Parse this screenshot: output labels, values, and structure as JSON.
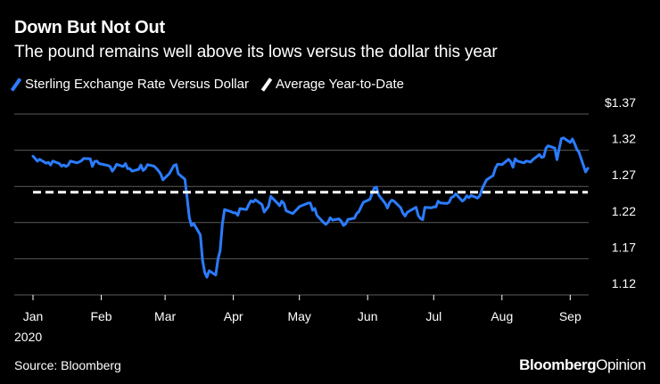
{
  "header": {
    "title": "Down But Not Out",
    "subtitle": "The pound remains well above its lows versus the dollar this year"
  },
  "legend": {
    "items": [
      {
        "label": "Sterling Exchange Rate Versus Dollar",
        "color": "#2b7cff"
      },
      {
        "label": "Average Year-to-Date",
        "color": "#ffffff"
      }
    ]
  },
  "footer": {
    "source": "Source: Bloomberg",
    "brand_bold": "Bloomberg",
    "brand_light": "Opinion"
  },
  "chart_data": {
    "type": "line",
    "title": "Down But Not Out",
    "subtitle": "The pound remains well above its lows versus the dollar this year",
    "xlabel": "",
    "ylabel": "",
    "x_unit": "day of year 2020",
    "xlim": [
      1,
      255
    ],
    "ylim": [
      1.12,
      1.37
    ],
    "y_ticks": [
      {
        "value": 1.37,
        "label": "$1.37"
      },
      {
        "value": 1.32,
        "label": "1.32"
      },
      {
        "value": 1.27,
        "label": "1.27"
      },
      {
        "value": 1.22,
        "label": "1.22"
      },
      {
        "value": 1.17,
        "label": "1.17"
      },
      {
        "value": 1.12,
        "label": "1.12"
      }
    ],
    "x_ticks": [
      {
        "value": 1,
        "label": "Jan"
      },
      {
        "value": 32,
        "label": "Feb"
      },
      {
        "value": 61,
        "label": "Mar"
      },
      {
        "value": 92,
        "label": "Apr"
      },
      {
        "value": 122,
        "label": "May"
      },
      {
        "value": 153,
        "label": "Jun"
      },
      {
        "value": 183,
        "label": "Jul"
      },
      {
        "value": 214,
        "label": "Aug"
      },
      {
        "value": 245,
        "label": "Sep"
      }
    ],
    "year_label": "2020",
    "grid": true,
    "series": [
      {
        "name": "Sterling Exchange Rate Versus Dollar",
        "color": "#2b7cff",
        "x": [
          1,
          3,
          4,
          7,
          8,
          9,
          10,
          13,
          14,
          15,
          16,
          17,
          18,
          21,
          22,
          23,
          24,
          27,
          28,
          29,
          30,
          31,
          35,
          36,
          37,
          38,
          39,
          42,
          43,
          44,
          45,
          46,
          49,
          50,
          51,
          52,
          53,
          56,
          57,
          58,
          59,
          60,
          63,
          64,
          65,
          66,
          67,
          70,
          71,
          72,
          73,
          74,
          77,
          78,
          79,
          80,
          81,
          84,
          85,
          86,
          87,
          88,
          91,
          92,
          93,
          94,
          95,
          98,
          99,
          100,
          101,
          102,
          105,
          106,
          107,
          108,
          109,
          112,
          113,
          114,
          115,
          116,
          119,
          120,
          121,
          122,
          123,
          126,
          127,
          128,
          129,
          130,
          133,
          134,
          135,
          136,
          137,
          140,
          141,
          142,
          143,
          144,
          147,
          148,
          149,
          150,
          151,
          154,
          155,
          156,
          157,
          158,
          161,
          162,
          163,
          164,
          165,
          168,
          169,
          170,
          171,
          172,
          175,
          176,
          177,
          178,
          179,
          182,
          183,
          184,
          185,
          186,
          189,
          190,
          191,
          192,
          193,
          196,
          197,
          198,
          199,
          200,
          203,
          204,
          205,
          206,
          207,
          210,
          211,
          212,
          213,
          214,
          217,
          218,
          219,
          220,
          221,
          224,
          225,
          226,
          227,
          228,
          231,
          232,
          233,
          234,
          235,
          238,
          239,
          240,
          241,
          242,
          245,
          246,
          247,
          248,
          249,
          252,
          253
        ],
        "values": [
          1.3117,
          1.3048,
          1.3075,
          1.302,
          1.3033,
          1.2995,
          1.305,
          1.3015,
          1.298,
          1.2995,
          1.2975,
          1.2995,
          1.305,
          1.3025,
          1.3038,
          1.3055,
          1.3085,
          1.308,
          1.2977,
          1.3045,
          1.305,
          1.3015,
          1.299,
          1.2975,
          1.291,
          1.295,
          1.3005,
          1.2975,
          1.3015,
          1.2945,
          1.2945,
          1.291,
          1.2937,
          1.2995,
          1.292,
          1.2945,
          1.3001,
          1.298,
          1.295,
          1.2915,
          1.287,
          1.279,
          1.2879,
          1.2935,
          1.2988,
          1.3002,
          1.2875,
          1.2799,
          1.254,
          1.2268,
          1.2158,
          1.2185,
          1.203,
          1.168,
          1.1513,
          1.1445,
          1.1534,
          1.1475,
          1.1695,
          1.181,
          1.2175,
          1.238,
          1.235,
          1.2334,
          1.2335,
          1.23,
          1.2393,
          1.238,
          1.245,
          1.25,
          1.2485,
          1.2515,
          1.2449,
          1.2345,
          1.2385,
          1.2426,
          1.2562,
          1.247,
          1.2433,
          1.2495,
          1.2464,
          1.2363,
          1.2325,
          1.2357,
          1.2386,
          1.242,
          1.2433,
          1.247,
          1.247,
          1.237,
          1.2395,
          1.2297,
          1.2201,
          1.2175,
          1.2205,
          1.2267,
          1.2235,
          1.225,
          1.2219,
          1.216,
          1.218,
          1.2242,
          1.226,
          1.2325,
          1.235,
          1.2415,
          1.248,
          1.252,
          1.26,
          1.2676,
          1.269,
          1.258,
          1.2463,
          1.2401,
          1.2477,
          1.251,
          1.2496,
          1.2406,
          1.233,
          1.229,
          1.234,
          1.236,
          1.241,
          1.2295,
          1.2255,
          1.224,
          1.241,
          1.2405,
          1.2415,
          1.2415,
          1.2495,
          1.2472,
          1.2463,
          1.248,
          1.2545,
          1.256,
          1.2597,
          1.2497,
          1.252,
          1.257,
          1.2545,
          1.2575,
          1.2539,
          1.2575,
          1.2665,
          1.273,
          1.279,
          1.285,
          1.295,
          1.3005,
          1.3005,
          1.3,
          1.3075,
          1.304,
          1.2965,
          1.308,
          1.305,
          1.3025,
          1.305,
          1.3045,
          1.3036,
          1.307,
          1.314,
          1.31,
          1.311,
          1.323,
          1.326,
          1.323,
          1.307,
          1.3225,
          1.3359,
          1.337,
          1.3307,
          1.3355,
          1.329,
          1.3214,
          1.317,
          1.29,
          1.295
        ]
      },
      {
        "name": "Average Year-to-Date",
        "color": "#ffffff",
        "style": "dashed",
        "x": [
          1,
          253
        ],
        "values": [
          1.262,
          1.262
        ]
      }
    ]
  }
}
